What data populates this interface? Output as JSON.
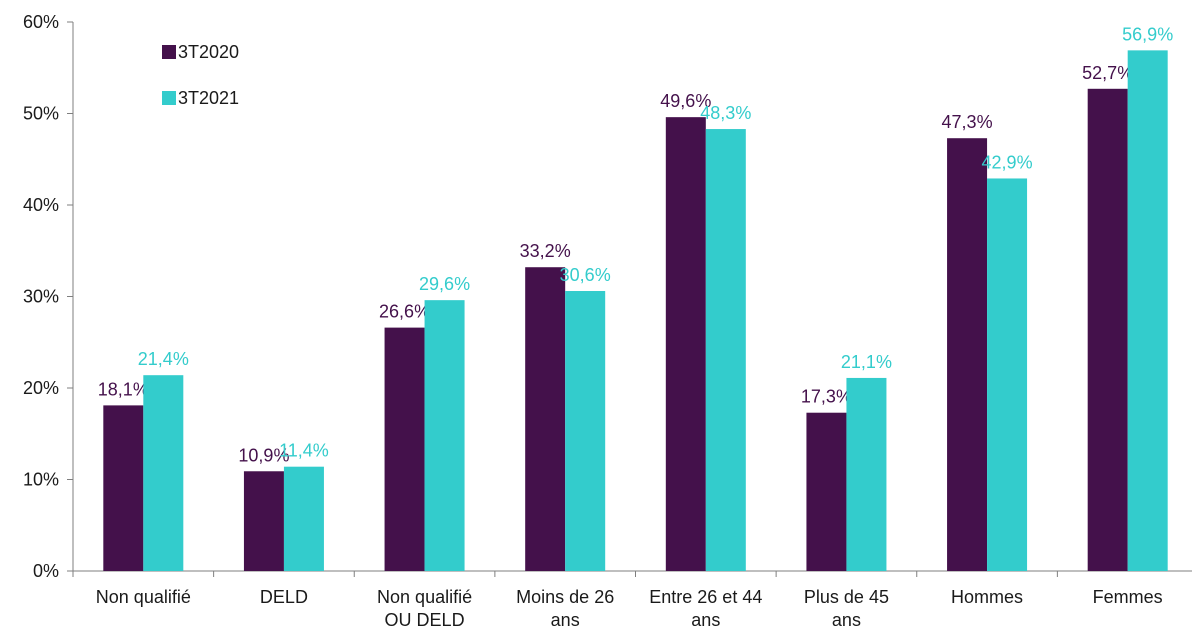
{
  "chart_data": {
    "type": "bar",
    "categories": [
      [
        "Non qualifié"
      ],
      [
        "DELD"
      ],
      [
        "Non qualifié",
        "OU DELD"
      ],
      [
        "Moins de 26",
        "ans"
      ],
      [
        "Entre 26 et 44",
        "ans"
      ],
      [
        "Plus de 45",
        "ans"
      ],
      [
        "Hommes"
      ],
      [
        "Femmes"
      ]
    ],
    "series": [
      {
        "name": "3T2020",
        "color": "#44114b",
        "values": [
          18.1,
          10.9,
          26.6,
          33.2,
          49.6,
          17.3,
          47.3,
          52.7
        ],
        "labels": [
          "18,1%",
          "10,9%",
          "26,6%",
          "33,2%",
          "49,6%",
          "17,3%",
          "47,3%",
          "52,7%"
        ]
      },
      {
        "name": "3T2021",
        "color": "#33cccc",
        "values": [
          21.4,
          11.4,
          29.6,
          30.6,
          48.3,
          21.1,
          42.9,
          56.9
        ],
        "labels": [
          "21,4%",
          "11,4%",
          "29,6%",
          "30,6%",
          "48,3%",
          "21,1%",
          "42,9%",
          "56,9%"
        ]
      }
    ],
    "ylim": [
      0,
      60
    ],
    "yticks": [
      0,
      10,
      20,
      30,
      40,
      50,
      60
    ],
    "ytick_labels": [
      "0%",
      "10%",
      "20%",
      "30%",
      "40%",
      "50%",
      "60%"
    ],
    "grid": false,
    "legend_position": "top-left",
    "title": "",
    "xlabel": "",
    "ylabel": ""
  }
}
